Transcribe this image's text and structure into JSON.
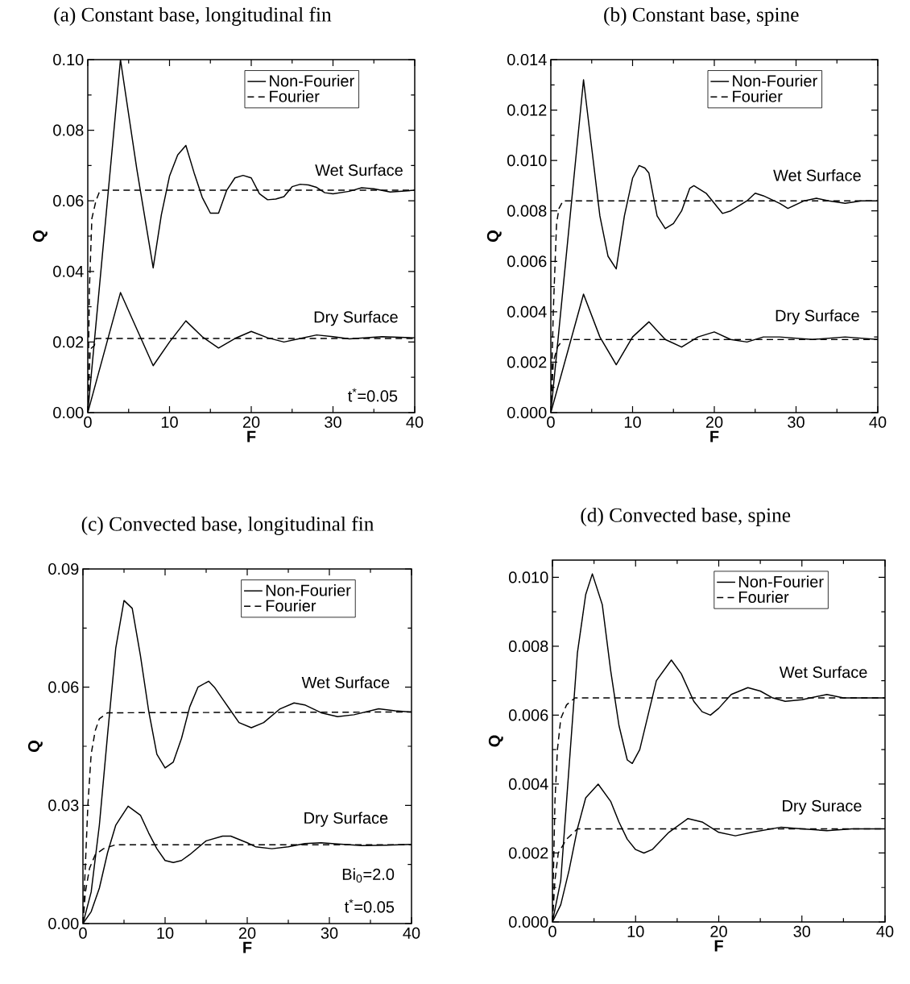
{
  "chart_data": [
    {
      "type": "line",
      "title": "(a) Constant base, longitudinal fin",
      "xlabel": "F",
      "ylabel": "Q",
      "xlim": [
        0,
        40
      ],
      "ylim": [
        0,
        0.1
      ],
      "xticks": [
        0,
        10,
        20,
        30,
        40
      ],
      "yticks": [
        {
          "value": 0,
          "label": "0.00"
        },
        {
          "value": 0.02,
          "label": "0.02"
        },
        {
          "value": 0.04,
          "label": "0.04"
        },
        {
          "value": 0.06,
          "label": "0.06"
        },
        {
          "value": 0.08,
          "label": "0.08"
        },
        {
          "value": 0.1,
          "label": "0.10"
        }
      ],
      "legend": "top right",
      "series": [
        {
          "name": "Non-Fourier",
          "color": "#000000",
          "line_style": "solid",
          "x": [
            0,
            4,
            6,
            8,
            9,
            10,
            11,
            12,
            13,
            14,
            15,
            16,
            17,
            18,
            19,
            20,
            21,
            22,
            23,
            24,
            25,
            26,
            27,
            28,
            29,
            30,
            32,
            33.5,
            35,
            37,
            40
          ],
          "values": [
            0,
            0.1,
            0.069,
            0.041,
            0.056,
            0.067,
            0.073,
            0.0757,
            0.068,
            0.061,
            0.0565,
            0.0565,
            0.063,
            0.0665,
            0.0672,
            0.0665,
            0.062,
            0.0603,
            0.0605,
            0.0612,
            0.064,
            0.0647,
            0.0645,
            0.0638,
            0.0623,
            0.062,
            0.0627,
            0.0637,
            0.0634,
            0.0625,
            0.063
          ]
        },
        {
          "name": "Fourier",
          "color": "#000000",
          "line_style": "dashed",
          "x": [
            0,
            0.2,
            0.5,
            1,
            1.5,
            40
          ],
          "values": [
            0,
            0.035,
            0.055,
            0.06,
            0.063,
            0.063
          ]
        },
        {
          "color": "#000000",
          "line_style": "solid",
          "x": [
            0,
            4,
            8,
            10,
            12,
            14,
            16,
            18,
            20,
            22,
            24,
            26,
            28,
            30,
            32,
            36,
            40
          ],
          "values": [
            0,
            0.034,
            0.0133,
            0.02,
            0.026,
            0.0215,
            0.0183,
            0.021,
            0.023,
            0.0212,
            0.02,
            0.021,
            0.022,
            0.0215,
            0.0209,
            0.0215,
            0.0212
          ]
        },
        {
          "color": "#000000",
          "line_style": "dashed",
          "x": [
            0,
            0.3,
            0.8,
            1,
            40
          ],
          "values": [
            0,
            0.018,
            0.019,
            0.021,
            0.021
          ]
        }
      ],
      "annotations": [
        "Wet Surface",
        "Dry Surface",
        "t$^{*}$=0.05"
      ]
    },
    {
      "type": "line",
      "title": "(b) Constant base, spine",
      "xlabel": "F",
      "ylabel": "Q",
      "xlim": [
        0,
        40
      ],
      "ylim": [
        0,
        0.014
      ],
      "xticks": [
        0,
        10,
        20,
        30,
        40
      ],
      "yticks": [
        {
          "value": 0,
          "label": "0.000"
        },
        {
          "value": 0.002,
          "label": "0.002"
        },
        {
          "value": 0.004,
          "label": "0.004"
        },
        {
          "value": 0.006,
          "label": "0.006"
        },
        {
          "value": 0.008,
          "label": "0.008"
        },
        {
          "value": 0.01,
          "label": "0.010"
        },
        {
          "value": 0.012,
          "label": "0.012"
        },
        {
          "value": 0.014,
          "label": "0.014"
        }
      ],
      "legend": "top right",
      "series": [
        {
          "name": "Non-Fourier",
          "color": "#000000",
          "line_style": "solid",
          "x": [
            0,
            4,
            5,
            6,
            7,
            8,
            9,
            10,
            10.8,
            11.5,
            12,
            13,
            14,
            15,
            16,
            17,
            17.5,
            19,
            20,
            21,
            22,
            24,
            25,
            26,
            28,
            29,
            31,
            32.5,
            34,
            36,
            38,
            40
          ],
          "values": [
            0,
            0.0132,
            0.0105,
            0.0078,
            0.0062,
            0.0057,
            0.0078,
            0.0093,
            0.0098,
            0.0097,
            0.0095,
            0.0078,
            0.0073,
            0.0075,
            0.008,
            0.0089,
            0.009,
            0.0087,
            0.0083,
            0.0079,
            0.008,
            0.0084,
            0.0087,
            0.0086,
            0.0083,
            0.0081,
            0.0084,
            0.0085,
            0.0084,
            0.0083,
            0.0084,
            0.0084
          ]
        },
        {
          "name": "Fourier",
          "color": "#000000",
          "line_style": "dashed",
          "x": [
            0,
            0.3,
            0.7,
            1,
            1.5,
            40
          ],
          "values": [
            0,
            0.004,
            0.0075,
            0.0081,
            0.0084,
            0.0084
          ]
        },
        {
          "color": "#000000",
          "line_style": "solid",
          "x": [
            0,
            4,
            6,
            8,
            10,
            12,
            14,
            16,
            18,
            20,
            22,
            24,
            26,
            28,
            32,
            36,
            40
          ],
          "values": [
            0,
            0.0047,
            0.003,
            0.0019,
            0.003,
            0.0036,
            0.0029,
            0.0026,
            0.003,
            0.0032,
            0.0029,
            0.0028,
            0.003,
            0.003,
            0.0029,
            0.003,
            0.0029
          ]
        },
        {
          "color": "#000000",
          "line_style": "dashed",
          "x": [
            0,
            0.3,
            0.8,
            1.5,
            40
          ],
          "values": [
            0,
            0.002,
            0.0026,
            0.0029,
            0.0029
          ]
        }
      ],
      "annotations": [
        "Wet Surface",
        "Dry Surface"
      ]
    },
    {
      "type": "line",
      "title": "(c) Convected base, longitudinal fin",
      "xlabel": "F",
      "ylabel": "Q",
      "xlim": [
        0,
        40
      ],
      "ylim": [
        0,
        0.09
      ],
      "xticks": [
        0,
        10,
        20,
        30,
        40
      ],
      "yticks": [
        {
          "value": 0,
          "label": "0.00"
        },
        {
          "value": 0.03,
          "label": "0.03"
        },
        {
          "value": 0.06,
          "label": "0.06"
        },
        {
          "value": 0.09,
          "label": "0.09"
        }
      ],
      "legend": "top right",
      "series": [
        {
          "name": "Non-Fourier",
          "color": "#000000",
          "line_style": "solid",
          "x": [
            0,
            1,
            2,
            3,
            4,
            5,
            6,
            7,
            8,
            9,
            10,
            11,
            12,
            13,
            14,
            15.3,
            16,
            17,
            18,
            19,
            20.5,
            22,
            24,
            25.7,
            27,
            29,
            31,
            33,
            36,
            38,
            40
          ],
          "values": [
            0,
            0.008,
            0.025,
            0.048,
            0.07,
            0.082,
            0.08,
            0.068,
            0.054,
            0.043,
            0.0395,
            0.041,
            0.047,
            0.055,
            0.06,
            0.0615,
            0.06,
            0.057,
            0.054,
            0.051,
            0.0497,
            0.051,
            0.0545,
            0.056,
            0.0555,
            0.0535,
            0.0525,
            0.053,
            0.0545,
            0.054,
            0.0537
          ]
        },
        {
          "name": "Fourier",
          "color": "#000000",
          "line_style": "dashed",
          "x": [
            0,
            0.3,
            0.6,
            1,
            1.5,
            2,
            3,
            40
          ],
          "values": [
            0,
            0.015,
            0.03,
            0.043,
            0.049,
            0.052,
            0.0535,
            0.0537
          ]
        },
        {
          "color": "#000000",
          "line_style": "solid",
          "x": [
            0,
            1,
            2,
            3,
            4,
            5.5,
            7,
            8,
            9,
            10,
            11,
            12,
            13,
            15,
            17,
            18,
            20,
            21,
            23,
            25,
            27,
            29,
            31,
            34,
            37,
            40
          ],
          "values": [
            0,
            0.003,
            0.009,
            0.018,
            0.025,
            0.0298,
            0.0275,
            0.023,
            0.019,
            0.016,
            0.0155,
            0.016,
            0.0175,
            0.021,
            0.0222,
            0.0222,
            0.0205,
            0.0195,
            0.019,
            0.0195,
            0.0203,
            0.0205,
            0.0202,
            0.0198,
            0.0199,
            0.0201
          ]
        },
        {
          "color": "#000000",
          "line_style": "dashed",
          "x": [
            0,
            0.3,
            0.8,
            1.5,
            2.5,
            4,
            40
          ],
          "values": [
            0,
            0.008,
            0.014,
            0.0175,
            0.019,
            0.02,
            0.02
          ]
        }
      ],
      "annotations": [
        "Wet Surface",
        "Dry Surface",
        "Bi$_{0}$=2.0",
        "t$^{*}$=0.05"
      ]
    },
    {
      "type": "line",
      "title": "(d) Convected base, spine",
      "xlabel": "F",
      "ylabel": "Q",
      "xlim": [
        0,
        40
      ],
      "ylim": [
        0,
        0.0105
      ],
      "xticks": [
        0,
        10,
        20,
        30,
        40
      ],
      "yticks": [
        {
          "value": 0,
          "label": "0.000"
        },
        {
          "value": 0.002,
          "label": "0.002"
        },
        {
          "value": 0.004,
          "label": "0.004"
        },
        {
          "value": 0.006,
          "label": "0.006"
        },
        {
          "value": 0.008,
          "label": "0.008"
        },
        {
          "value": 0.01,
          "label": "0.010"
        }
      ],
      "legend": "top right",
      "series": [
        {
          "name": "Non-Fourier",
          "color": "#000000",
          "line_style": "solid",
          "x": [
            0,
            1,
            2,
            3,
            4,
            4.8,
            6,
            7,
            8,
            9,
            9.6,
            10.5,
            11.5,
            12.5,
            14.3,
            15.5,
            17,
            18,
            19,
            20,
            21.5,
            23.5,
            25,
            26.5,
            28,
            30,
            33,
            35,
            37,
            40
          ],
          "values": [
            0,
            0.0012,
            0.0045,
            0.0078,
            0.0095,
            0.0101,
            0.0092,
            0.0073,
            0.0057,
            0.0047,
            0.0046,
            0.005,
            0.006,
            0.007,
            0.0076,
            0.0072,
            0.0064,
            0.0061,
            0.006,
            0.0062,
            0.0066,
            0.0068,
            0.0067,
            0.0065,
            0.0064,
            0.00645,
            0.0066,
            0.0065,
            0.0065,
            0.0065
          ]
        },
        {
          "name": "Fourier",
          "color": "#000000",
          "line_style": "dashed",
          "x": [
            0,
            0.3,
            0.6,
            1,
            1.7,
            2.7,
            40
          ],
          "values": [
            0,
            0.0035,
            0.005,
            0.0059,
            0.0063,
            0.0065,
            0.0065
          ]
        },
        {
          "color": "#000000",
          "line_style": "solid",
          "x": [
            0,
            1,
            2,
            3,
            4,
            5.5,
            7,
            8,
            9,
            10,
            11,
            12,
            14,
            16.3,
            18,
            20,
            22,
            24,
            27.5,
            30,
            33,
            36,
            40
          ],
          "values": [
            0,
            0.0005,
            0.0015,
            0.0027,
            0.0036,
            0.004,
            0.0035,
            0.0029,
            0.0024,
            0.0021,
            0.002,
            0.0021,
            0.0026,
            0.003,
            0.0029,
            0.0026,
            0.0025,
            0.0026,
            0.00275,
            0.0027,
            0.00265,
            0.0027,
            0.0027
          ]
        },
        {
          "color": "#000000",
          "line_style": "dashed",
          "x": [
            0,
            0.3,
            0.7,
            1.7,
            3,
            40
          ],
          "values": [
            0,
            0.0012,
            0.002,
            0.0024,
            0.0027,
            0.0027
          ]
        }
      ],
      "annotations": [
        "Wet Surface",
        "Dry Surace"
      ]
    }
  ]
}
